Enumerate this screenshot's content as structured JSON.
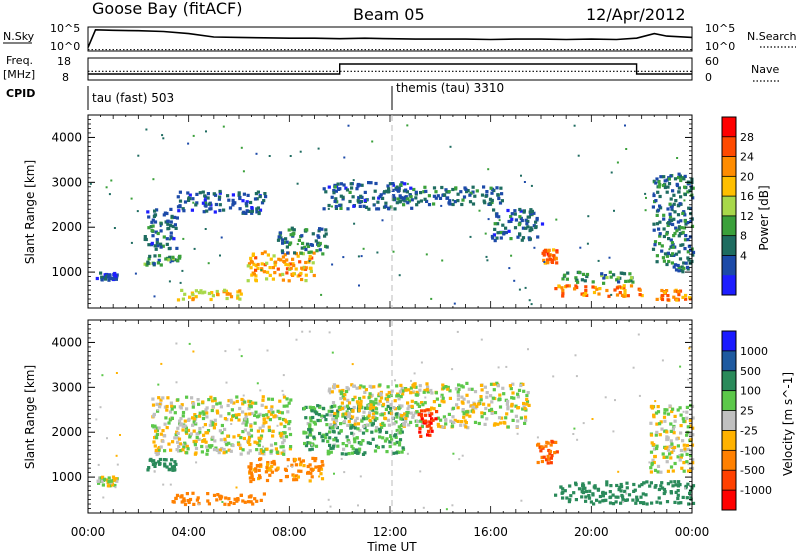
{
  "header": {
    "title_left": "Goose Bay (fitACF)",
    "title_center": "Beam 05",
    "title_right": "12/Apr/2012"
  },
  "sidepanels": {
    "nsky_label": "N.Sky",
    "nsky_ticks": [
      "10^5",
      "10^0"
    ],
    "nsearch_label": "N.Search",
    "nsearch_ticks": [
      "10^5",
      "10^0"
    ],
    "freq_label_1": "Freq.",
    "freq_label_2": "[MHz]",
    "freq_ticks": [
      "18",
      "8"
    ],
    "nave_label": "Nave",
    "nave_ticks": [
      "60",
      "0"
    ],
    "cpid_label": "CPID",
    "cpid_left": "tau (fast) 503",
    "cpid_right": "themis (tau) 3310"
  },
  "axes": {
    "ylabel": "Slant Range [km]",
    "xlabel": "Time UT",
    "yticks": [
      "4000",
      "3000",
      "2000",
      "1000"
    ],
    "xticks": [
      "00:00",
      "04:00",
      "08:00",
      "12:00",
      "16:00",
      "20:00",
      "00:00"
    ]
  },
  "colorbars": {
    "power_label": "Power [dB]",
    "power_ticks": [
      "28",
      "24",
      "20",
      "16",
      "12",
      "8",
      "4"
    ],
    "power_colors": [
      "#ff0000",
      "#ff4a00",
      "#ff8c00",
      "#ffbf00",
      "#a8d84a",
      "#3aa03a",
      "#1e6c60",
      "#1c4aa8",
      "#1e1eff"
    ],
    "velocity_label": "Velocity [m s^-1]",
    "velocity_ticks": [
      "1000",
      "500",
      "100",
      "25",
      "-25",
      "-100",
      "-500",
      "-1000"
    ],
    "velocity_colors": [
      "#1a1aff",
      "#1e5aa0",
      "#2a8a5a",
      "#5cc84a",
      "#c0c0c0",
      "#ffb200",
      "#ff8000",
      "#ff4000",
      "#ff0000"
    ]
  },
  "chart_data": [
    {
      "type": "line",
      "panel": "N.Sky / N.Search",
      "x_unit": "hours UT",
      "xlim": [
        0,
        24
      ],
      "x": [
        0,
        0.3,
        1,
        2,
        3,
        4,
        5,
        6,
        7,
        8,
        9,
        10,
        11,
        12,
        13,
        14,
        15,
        16,
        17,
        18,
        19,
        20,
        21,
        21.8,
        22.5,
        23,
        24
      ],
      "series": [
        {
          "name": "N.Sky",
          "style": "solid",
          "values_log10": [
            0.6,
            4.8,
            4.7,
            4.6,
            4.4,
            3.9,
            3.1,
            3.0,
            2.9,
            2.8,
            2.8,
            2.7,
            2.8,
            2.7,
            2.6,
            2.6,
            2.6,
            2.5,
            2.6,
            2.6,
            2.5,
            2.6,
            2.5,
            2.8,
            3.9,
            3.3,
            3.0
          ]
        },
        {
          "name": "N.Search",
          "style": "dotted",
          "values_log10": [
            0.1,
            0.1,
            0.1,
            0.1,
            0.1,
            0.1,
            0.1,
            0.1,
            0.1,
            0.1,
            0.1,
            0.1,
            0.1,
            0.1,
            0.1,
            0.1,
            0.1,
            0.1,
            0.1,
            0.1,
            0.1,
            0.1,
            0.1,
            0.1,
            0.1,
            0.1,
            0.1
          ]
        }
      ]
    },
    {
      "type": "line",
      "panel": "Freq / Nave",
      "xlim": [
        0,
        24
      ],
      "series": [
        {
          "name": "Freq.",
          "style": "solid",
          "x": [
            0,
            10,
            10,
            21.8,
            21.8,
            24
          ],
          "values": [
            10.5,
            10.5,
            15.5,
            15.5,
            10.5,
            10.5
          ]
        },
        {
          "name": "Nave",
          "style": "dotted",
          "x": [
            0,
            24
          ],
          "values": [
            8,
            8
          ]
        }
      ]
    },
    {
      "type": "scatter",
      "panel": "Power [dB]",
      "xlim": [
        0,
        24
      ],
      "ylim": [
        200,
        4500
      ],
      "points_count": 2200,
      "features": [
        {
          "t": [
            0.3,
            1.1
          ],
          "r": [
            800,
            1000
          ],
          "level": 4
        },
        {
          "t": [
            2.2,
            3.5
          ],
          "r": [
            1500,
            2400
          ],
          "level": 6
        },
        {
          "t": [
            2.2,
            3.6
          ],
          "r": [
            1150,
            1400
          ],
          "level": 10
        },
        {
          "t": [
            3.5,
            7.0
          ],
          "r": [
            2300,
            2800
          ],
          "level": 5
        },
        {
          "t": [
            3.5,
            6.2
          ],
          "r": [
            380,
            620
          ],
          "level": 20
        },
        {
          "t": [
            6.3,
            9.0
          ],
          "r": [
            800,
            1450
          ],
          "level": 22
        },
        {
          "t": [
            7.5,
            9.5
          ],
          "r": [
            1400,
            2000
          ],
          "level": 9
        },
        {
          "t": [
            9.3,
            13.0
          ],
          "r": [
            2400,
            3000
          ],
          "level": 6
        },
        {
          "t": [
            12.0,
            16.5
          ],
          "r": [
            2500,
            2900
          ],
          "level": 7
        },
        {
          "t": [
            16.0,
            18.0
          ],
          "r": [
            1700,
            2400
          ],
          "level": 6
        },
        {
          "t": [
            18.0,
            18.6
          ],
          "r": [
            1200,
            1500
          ],
          "level": 26
        },
        {
          "t": [
            18.5,
            22.0
          ],
          "r": [
            450,
            700
          ],
          "level": 25
        },
        {
          "t": [
            18.6,
            21.6
          ],
          "r": [
            750,
            1000
          ],
          "level": 10
        },
        {
          "t": [
            22.4,
            24.0
          ],
          "r": [
            1000,
            3200
          ],
          "level": 8
        },
        {
          "t": [
            22.5,
            24.0
          ],
          "r": [
            350,
            600
          ],
          "level": 24
        }
      ]
    },
    {
      "type": "scatter",
      "panel": "Velocity [m s^-1]",
      "xlim": [
        0,
        24
      ],
      "ylim": [
        200,
        4500
      ],
      "points_count": 2200,
      "features": [
        {
          "t": [
            0.3,
            1.1
          ],
          "r": [
            800,
            1000
          ],
          "vel": 0
        },
        {
          "t": [
            2.5,
            8.0
          ],
          "r": [
            1500,
            2800
          ],
          "vel": 0
        },
        {
          "t": [
            2.3,
            3.5
          ],
          "r": [
            1150,
            1400
          ],
          "vel": 300
        },
        {
          "t": [
            3.3,
            7.0
          ],
          "r": [
            380,
            650
          ],
          "vel": -200
        },
        {
          "t": [
            6.3,
            9.3
          ],
          "r": [
            900,
            1450
          ],
          "vel": -150
        },
        {
          "t": [
            8.5,
            12.5
          ],
          "r": [
            1500,
            2600
          ],
          "vel": 100
        },
        {
          "t": [
            9.5,
            17.5
          ],
          "r": [
            2100,
            3100
          ],
          "vel": 0
        },
        {
          "t": [
            13.0,
            13.8
          ],
          "r": [
            1900,
            2500
          ],
          "vel": -1000
        },
        {
          "t": [
            17.8,
            18.6
          ],
          "r": [
            1300,
            1800
          ],
          "vel": -500
        },
        {
          "t": [
            18.5,
            24.0
          ],
          "r": [
            400,
            900
          ],
          "vel": 200
        },
        {
          "t": [
            22.3,
            24.0
          ],
          "r": [
            1100,
            2600
          ],
          "vel": 0
        }
      ]
    }
  ]
}
